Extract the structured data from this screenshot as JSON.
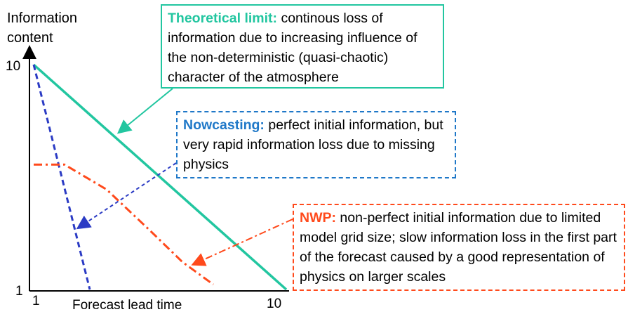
{
  "chart_data": {
    "type": "line",
    "ylabel": "Information content",
    "xlabel": "Forecast lead time",
    "x_ticks": [
      "1",
      "10"
    ],
    "y_ticks": [
      "1",
      "10"
    ],
    "xlim": [
      1,
      10
    ],
    "ylim": [
      1,
      10
    ],
    "colors": {
      "theoretical": "#22c6a0",
      "nowcasting": "#2b3bc4",
      "nwp": "#ff4a1c"
    },
    "series": [
      {
        "key": "theoretical",
        "style": "solid",
        "x": [
          1,
          10
        ],
        "y": [
          10,
          1
        ]
      },
      {
        "key": "nowcasting",
        "style": "dashed",
        "x": [
          1,
          3.0
        ],
        "y": [
          10,
          1
        ]
      },
      {
        "key": "nwp",
        "style": "dash-dot",
        "x": [
          1,
          2.1,
          3.6,
          5.2,
          6.3,
          7.4
        ],
        "y": [
          6.0,
          6.0,
          5.0,
          3.3,
          2.1,
          1.2
        ]
      }
    ]
  },
  "annotations": {
    "theoretical": {
      "heading": "Theoretical limit:",
      "text": " continous loss of information due to increasing influence of the non-deterministic (quasi-chaotic) character of the atmosphere"
    },
    "nowcasting": {
      "heading": "Nowcasting:",
      "text": " perfect initial information, but very rapid information loss due to missing physics"
    },
    "nwp": {
      "heading": "NWP:",
      "text": " non-perfect initial information due to limited model grid size; slow information loss in the first part of the forecast caused by a good representation of physics on larger scales"
    }
  }
}
